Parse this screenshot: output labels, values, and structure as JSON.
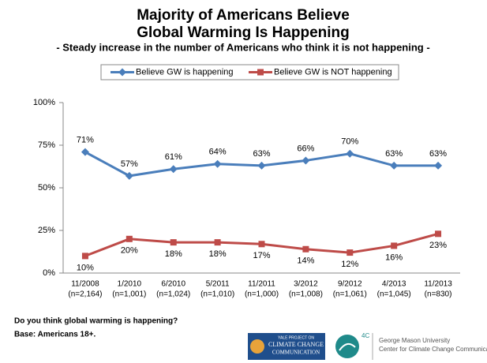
{
  "chart_data": {
    "type": "line",
    "title": [
      "Majority of Americans Believe",
      "Global Warming Is Happening"
    ],
    "subtitle": "- Steady increase in the number of Americans who think it is not happening -",
    "categories": [
      [
        "11/2008",
        "(n=2,164)"
      ],
      [
        "1/2010",
        "(n=1,001)"
      ],
      [
        "6/2010",
        "(n=1,024)"
      ],
      [
        "5/2011",
        "(n=1,010)"
      ],
      [
        "11/2011",
        "(n=1,000)"
      ],
      [
        "3/2012",
        "(n=1,008)"
      ],
      [
        "9/2012",
        "(n=1,061)"
      ],
      [
        "4/2013",
        "(n=1,045)"
      ],
      [
        "11/2013",
        "(n=830)"
      ]
    ],
    "series": [
      {
        "name": "Believe GW is happening",
        "color": "#4a7ebb",
        "marker": "diamond",
        "label_position": "above",
        "values": [
          71,
          57,
          61,
          64,
          63,
          66,
          70,
          63,
          63
        ],
        "value_labels": [
          "71%",
          "57%",
          "61%",
          "64%",
          "63%",
          "66%",
          "70%",
          "63%",
          "63%"
        ]
      },
      {
        "name": "Believe GW is NOT happening",
        "color": "#be4b48",
        "marker": "square",
        "label_position": "below",
        "values": [
          10,
          20,
          18,
          18,
          17,
          14,
          12,
          16,
          23
        ],
        "value_labels": [
          "10%",
          "20%",
          "18%",
          "18%",
          "17%",
          "14%",
          "12%",
          "16%",
          "23%"
        ]
      }
    ],
    "ylim": [
      0,
      100
    ],
    "yticks": [
      {
        "value": 0,
        "label": "0%"
      },
      {
        "value": 25,
        "label": "25%"
      },
      {
        "value": 50,
        "label": "50%"
      },
      {
        "value": 75,
        "label": "75%"
      },
      {
        "value": 100,
        "label": "100%"
      }
    ],
    "grid": false,
    "legend": "top"
  },
  "notes": [
    "Do you think global warming is happening?",
    "Base: Americans 18+."
  ],
  "logos": {
    "yale": [
      "YALE PROJECT ON",
      "CLIMATE CHANGE",
      "COMMUNICATION"
    ],
    "badge": "4C",
    "gmu": [
      "George Mason University",
      "Center for Climate Change Communication"
    ]
  }
}
